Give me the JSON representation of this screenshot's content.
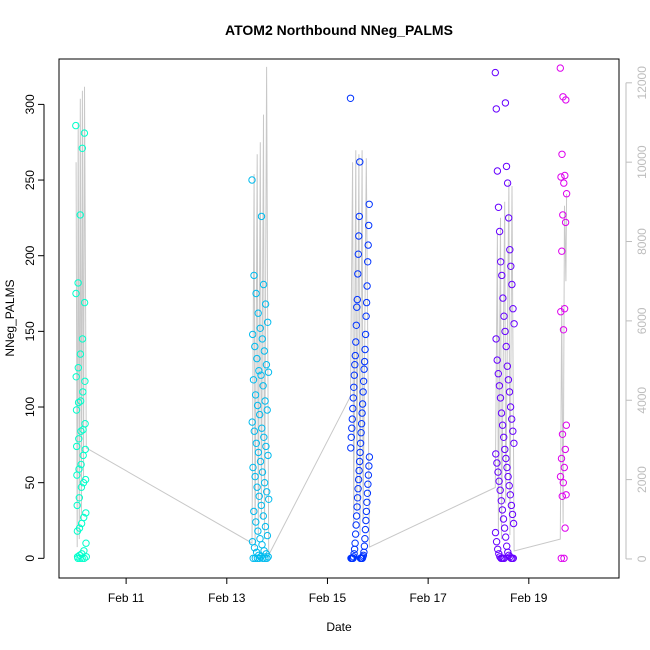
{
  "chart_data": {
    "type": "scatter",
    "title": "ATOM2 Northbound NNeg_PALMS",
    "xlabel": "Date",
    "ylabel": "NNeg_PALMS",
    "xlim": [
      "2024-02-09T16:00",
      "2024-02-20T19:00"
    ],
    "ylim": [
      -13,
      330
    ],
    "y2lim": [
      -480,
      12600
    ],
    "x_ticks": [
      {
        "date": "2024-02-11",
        "label": "Feb 11"
      },
      {
        "date": "2024-02-13",
        "label": "Feb 13"
      },
      {
        "date": "2024-02-15",
        "label": "Feb 15"
      },
      {
        "date": "2024-02-17",
        "label": "Feb 17"
      },
      {
        "date": "2024-02-19",
        "label": "Feb 19"
      }
    ],
    "y_ticks": [
      0,
      50,
      100,
      150,
      200,
      250,
      300
    ],
    "y2_ticks": [
      0,
      2000,
      4000,
      6000,
      8000,
      10000,
      12000
    ],
    "grid": false,
    "legend": "none",
    "colors": {
      "line": "#c8c8c8",
      "axis": "#000000",
      "right_axis": "#bdbdbd",
      "flight_1": "#00ffcc",
      "flight_2": "#00bbee",
      "flight_3": "#0033ff",
      "flight_4": "#6600ff",
      "flight_5": "#dd00ee"
    },
    "flights": [
      {
        "color": "#00ffcc",
        "start": "2024-02-10T00:00",
        "end": "2024-02-10T05:00",
        "points": [
          286,
          281,
          271,
          227,
          182,
          175,
          169,
          145,
          135,
          126,
          120,
          117,
          110,
          104,
          103,
          98,
          89,
          85,
          84,
          79,
          74,
          72,
          68,
          62,
          59,
          55,
          52,
          50,
          47,
          40,
          35,
          30,
          27,
          23,
          20,
          18,
          10,
          5,
          3,
          2,
          1,
          1,
          0,
          0,
          0,
          0
        ]
      },
      {
        "color": "#00bbee",
        "start": "2024-02-13T12:00",
        "end": "2024-02-13T20:00",
        "points": [
          250,
          226,
          187,
          181,
          175,
          168,
          162,
          156,
          152,
          148,
          145,
          140,
          137,
          132,
          128,
          124,
          123,
          121,
          118,
          114,
          108,
          104,
          101,
          98,
          95,
          90,
          86,
          84,
          80,
          76,
          74,
          70,
          68,
          64,
          60,
          57,
          54,
          50,
          47,
          44,
          41,
          39,
          35,
          31,
          28,
          24,
          21,
          18,
          15,
          13,
          11,
          9,
          7,
          5,
          4,
          3,
          2,
          1,
          1,
          0,
          0,
          0,
          0,
          0,
          0,
          0
        ]
      },
      {
        "color": "#0033ff",
        "start": "2024-02-15T11:00",
        "end": "2024-02-15T20:00",
        "points": [
          304,
          262,
          234,
          226,
          220,
          213,
          207,
          201,
          196,
          188,
          180,
          171,
          169,
          166,
          160,
          154,
          148,
          143,
          138,
          134,
          130,
          128,
          125,
          121,
          117,
          113,
          110,
          106,
          102,
          99,
          96,
          92,
          89,
          86,
          83,
          80,
          76,
          73,
          70,
          67,
          64,
          61,
          58,
          55,
          52,
          49,
          46,
          43,
          40,
          37,
          34,
          31,
          28,
          25,
          22,
          19,
          16,
          13,
          10,
          8,
          6,
          4,
          3,
          2,
          1,
          1,
          0,
          0,
          0,
          0,
          0,
          0,
          0,
          0,
          0,
          0
        ]
      },
      {
        "color": "#6600ff",
        "start": "2024-02-18T08:00",
        "end": "2024-02-18T17:00",
        "points": [
          321,
          301,
          297,
          259,
          256,
          248,
          232,
          225,
          216,
          204,
          196,
          193,
          187,
          181,
          172,
          165,
          160,
          155,
          150,
          145,
          140,
          131,
          127,
          122,
          118,
          114,
          110,
          106,
          100,
          96,
          92,
          88,
          84,
          80,
          76,
          72,
          69,
          66,
          63,
          60,
          57,
          54,
          51,
          48,
          45,
          42,
          38,
          35,
          32,
          29,
          26,
          23,
          20,
          17,
          14,
          11,
          8,
          6,
          4,
          3,
          2,
          1,
          1,
          0,
          0,
          0,
          0,
          0,
          0,
          0
        ]
      },
      {
        "color": "#dd00ee",
        "start": "2024-02-19T15:00",
        "end": "2024-02-19T18:00",
        "points": [
          324,
          305,
          303,
          267,
          253,
          252,
          248,
          241,
          227,
          222,
          203,
          165,
          163,
          151,
          88,
          82,
          72,
          66,
          60,
          54,
          50,
          42,
          41,
          20,
          0,
          0
        ]
      }
    ],
    "secondary_trace": [
      {
        "x": "2024-02-10T00:10",
        "y": 10000
      },
      {
        "x": "2024-02-10T00:40",
        "y": 300
      },
      {
        "x": "2024-02-10T01:10",
        "y": 11000
      },
      {
        "x": "2024-02-10T01:40",
        "y": 500
      },
      {
        "x": "2024-02-10T02:10",
        "y": 11600
      },
      {
        "x": "2024-02-10T02:40",
        "y": 1000
      },
      {
        "x": "2024-02-10T03:10",
        "y": 11800
      },
      {
        "x": "2024-02-10T03:40",
        "y": 2000
      },
      {
        "x": "2024-02-10T04:10",
        "y": 11900
      },
      {
        "x": "2024-02-10T05:00",
        "y": 2800
      },
      {
        "x": "2024-02-13T12:00",
        "y": 400
      },
      {
        "x": "2024-02-13T13:00",
        "y": 9700
      },
      {
        "x": "2024-02-13T13:30",
        "y": 300
      },
      {
        "x": "2024-02-13T14:30",
        "y": 10200
      },
      {
        "x": "2024-02-13T15:00",
        "y": 600
      },
      {
        "x": "2024-02-13T16:00",
        "y": 10500
      },
      {
        "x": "2024-02-13T16:30",
        "y": 1000
      },
      {
        "x": "2024-02-13T17:30",
        "y": 11200
      },
      {
        "x": "2024-02-13T18:00",
        "y": 500
      },
      {
        "x": "2024-02-13T19:00",
        "y": 12400
      },
      {
        "x": "2024-02-13T20:00",
        "y": 100
      },
      {
        "x": "2024-02-15T11:00",
        "y": 4100
      },
      {
        "x": "2024-02-15T12:00",
        "y": 10000
      },
      {
        "x": "2024-02-15T12:30",
        "y": 800
      },
      {
        "x": "2024-02-15T13:30",
        "y": 10300
      },
      {
        "x": "2024-02-15T14:00",
        "y": 1200
      },
      {
        "x": "2024-02-15T15:00",
        "y": 10200
      },
      {
        "x": "2024-02-15T15:30",
        "y": 600
      },
      {
        "x": "2024-02-15T16:30",
        "y": 10300
      },
      {
        "x": "2024-02-15T17:00",
        "y": 900
      },
      {
        "x": "2024-02-15T18:30",
        "y": 10100
      },
      {
        "x": "2024-02-15T20:00",
        "y": 300
      },
      {
        "x": "2024-02-18T08:00",
        "y": 1800
      },
      {
        "x": "2024-02-18T09:00",
        "y": 8200
      },
      {
        "x": "2024-02-18T09:30",
        "y": 700
      },
      {
        "x": "2024-02-18T10:30",
        "y": 8600
      },
      {
        "x": "2024-02-18T11:00",
        "y": 500
      },
      {
        "x": "2024-02-18T12:30",
        "y": 9000
      },
      {
        "x": "2024-02-18T13:00",
        "y": 1400
      },
      {
        "x": "2024-02-18T14:30",
        "y": 9500
      },
      {
        "x": "2024-02-18T15:00",
        "y": 600
      },
      {
        "x": "2024-02-18T16:00",
        "y": 9400
      },
      {
        "x": "2024-02-18T17:00",
        "y": 200
      },
      {
        "x": "2024-02-19T15:00",
        "y": 500
      },
      {
        "x": "2024-02-19T15:40",
        "y": 6400
      },
      {
        "x": "2024-02-19T16:20",
        "y": 900
      },
      {
        "x": "2024-02-19T17:00",
        "y": 8900
      },
      {
        "x": "2024-02-19T17:40",
        "y": 7000
      },
      {
        "x": "2024-02-19T18:00",
        "y": 9200
      }
    ]
  }
}
